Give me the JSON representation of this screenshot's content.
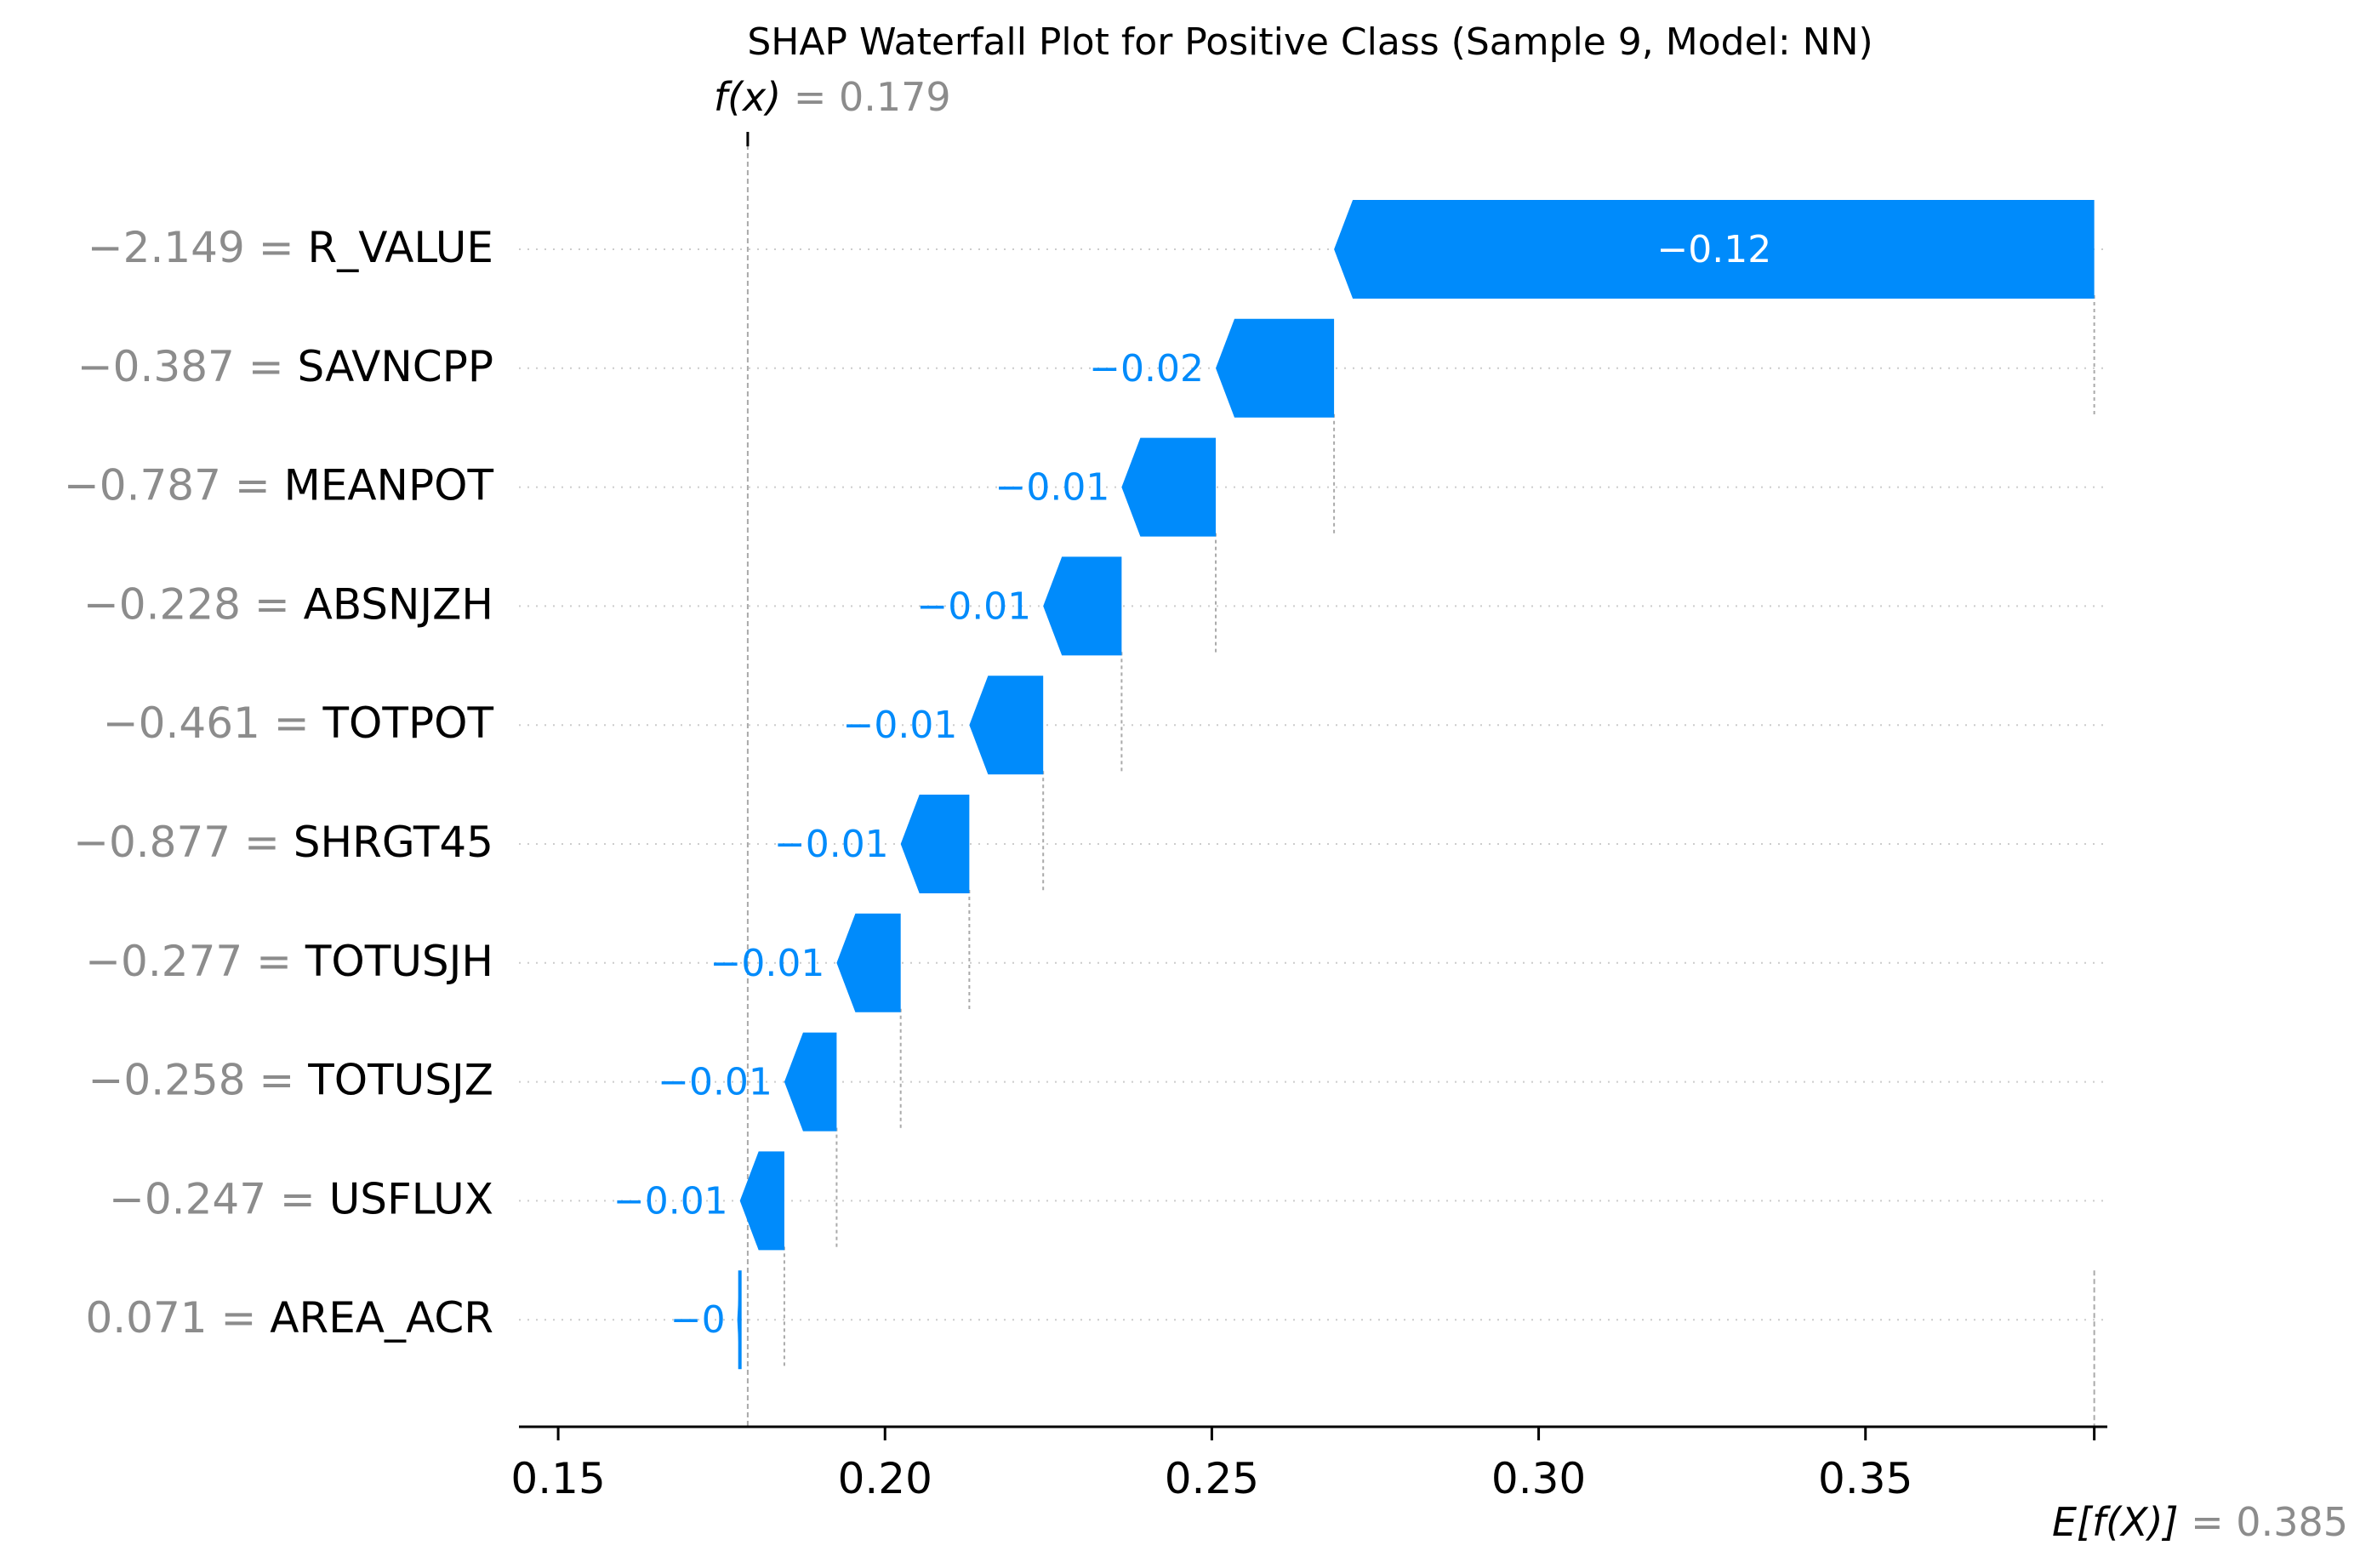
{
  "chart_data": {
    "type": "waterfall",
    "title": "SHAP Waterfall Plot for Positive Class (Sample 9, Model: NN)",
    "base_value": 0.385,
    "output_value": 0.179,
    "fx_label_name": "f(x)",
    "fx_label_value": "0.179",
    "efx_label_name": "E[f(X)]",
    "efx_label_value": "0.385",
    "xlim": [
      0.144,
      0.387
    ],
    "x_ticks": [
      0.15,
      0.2,
      0.25,
      0.3,
      0.35
    ],
    "x_tick_labels": [
      "0.15",
      "0.20",
      "0.25",
      "0.30",
      "0.35"
    ],
    "features": [
      {
        "name": "R_VALUE",
        "value_label": "−2.149",
        "shap": -0.1163,
        "shap_label": "−0.12"
      },
      {
        "name": "SAVNCPP",
        "value_label": "−0.387",
        "shap": -0.0181,
        "shap_label": "−0.02"
      },
      {
        "name": "MEANPOT",
        "value_label": "−0.787",
        "shap": -0.0144,
        "shap_label": "−0.01"
      },
      {
        "name": "ABSNJZH",
        "value_label": "−0.228",
        "shap": -0.012,
        "shap_label": "−0.01"
      },
      {
        "name": "TOTPOT",
        "value_label": "−0.461",
        "shap": -0.0113,
        "shap_label": "−0.01"
      },
      {
        "name": "SHRGT45",
        "value_label": "−0.877",
        "shap": -0.0105,
        "shap_label": "−0.01"
      },
      {
        "name": "TOTUSJH",
        "value_label": "−0.277",
        "shap": -0.0098,
        "shap_label": "−0.01"
      },
      {
        "name": "TOTUSJZ",
        "value_label": "−0.258",
        "shap": -0.008,
        "shap_label": "−0.01"
      },
      {
        "name": "USFLUX",
        "value_label": "−0.247",
        "shap": -0.0068,
        "shap_label": "−0.01"
      },
      {
        "name": "AREA_ACR",
        "value_label": "0.071",
        "shap": -0.0004,
        "shap_label": "−0"
      }
    ],
    "colors": {
      "negative": "#008bfb",
      "label_inside": "#ffffff",
      "gray_text": "#8c8c8c",
      "gridline": "#cccccc",
      "axis": "#000000"
    }
  }
}
